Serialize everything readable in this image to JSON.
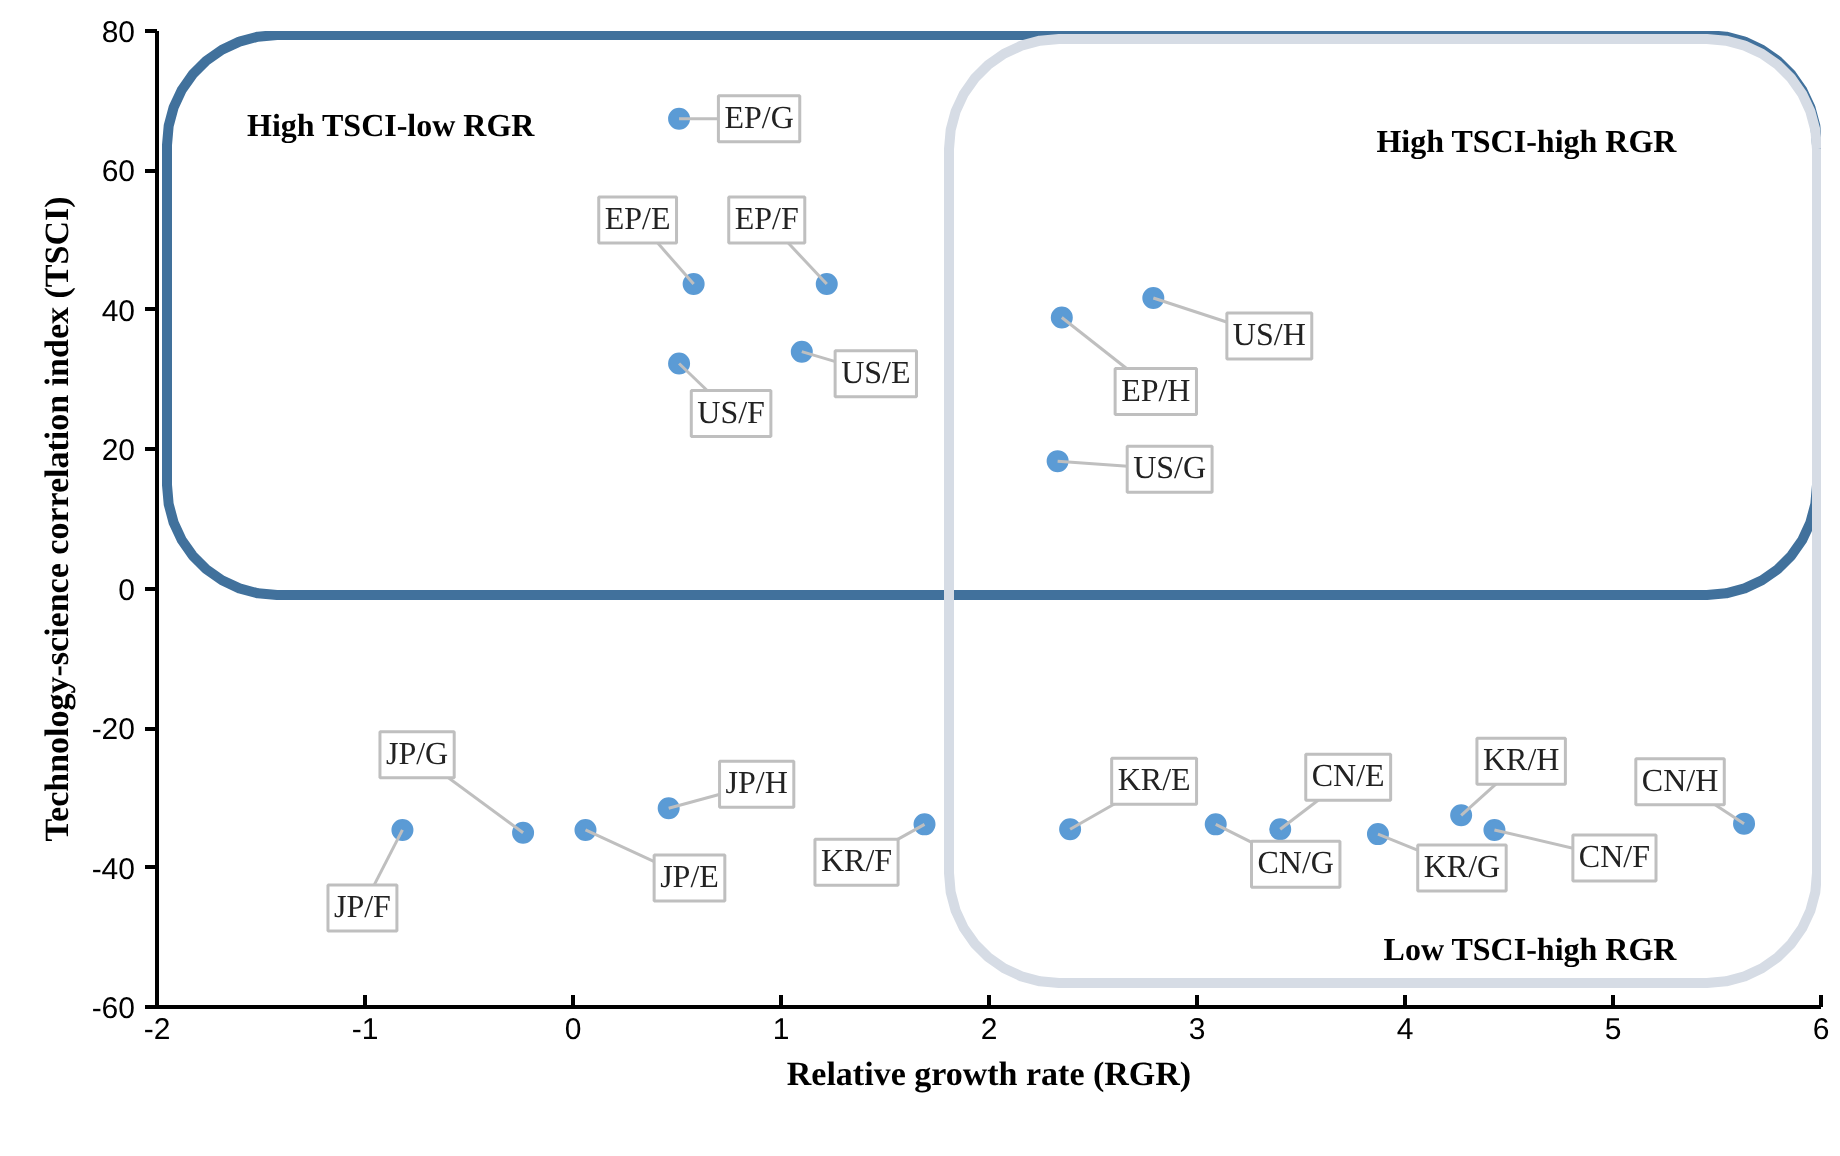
{
  "chart_data": {
    "type": "scatter",
    "xlabel": "Relative growth rate (RGR)",
    "ylabel": "Technology-science correlation index (TSCI)",
    "x": [
      0.51,
      0.58,
      1.22,
      0.51,
      1.1,
      2.35,
      2.79,
      2.33,
      -0.82,
      -0.24,
      0.06,
      0.46,
      1.69,
      2.39,
      3.09,
      3.4,
      3.87,
      4.27,
      4.43,
      5.63
    ],
    "series": [
      {
        "color": "#5b9bd5",
        "values": [
          67.4,
          43.7,
          43.7,
          32.3,
          34,
          38.9,
          41.7,
          18.3,
          -34.6,
          -35,
          -34.6,
          -31.5,
          -33.8,
          -34.5,
          -33.8,
          -34.5,
          -35.2,
          -32.5,
          -34.6,
          -33.7
        ]
      }
    ],
    "xlim": [
      -2,
      6
    ],
    "ylim": [
      -60,
      80
    ],
    "xticks": [
      -2,
      -1,
      0,
      1,
      2,
      3,
      4,
      5,
      6
    ],
    "yticks": [
      -60,
      -40,
      -20,
      0,
      20,
      40,
      60,
      80
    ],
    "grid": false,
    "marker": "circle",
    "annotations": [
      {
        "text": "EP/G",
        "x": 0.51,
        "y": 67.4
      },
      {
        "text": "EP/E",
        "x": 0.58,
        "y": 43.7
      },
      {
        "text": "EP/F",
        "x": 1.22,
        "y": 43.7
      },
      {
        "text": "US/F",
        "x": 0.51,
        "y": 32.3
      },
      {
        "text": "US/E",
        "x": 1.1,
        "y": 34
      },
      {
        "text": "EP/H",
        "x": 2.35,
        "y": 38.9
      },
      {
        "text": "US/H",
        "x": 2.79,
        "y": 41.7
      },
      {
        "text": "US/G",
        "x": 2.33,
        "y": 18.3
      },
      {
        "text": "JP/F",
        "x": -0.82,
        "y": -34.6
      },
      {
        "text": "JP/G",
        "x": -0.24,
        "y": -35
      },
      {
        "text": "JP/E",
        "x": 0.06,
        "y": -34.6
      },
      {
        "text": "JP/H",
        "x": 0.46,
        "y": -31.5
      },
      {
        "text": "KR/F",
        "x": 1.69,
        "y": -33.8
      },
      {
        "text": "KR/E",
        "x": 2.39,
        "y": -34.5
      },
      {
        "text": "CN/G",
        "x": 3.09,
        "y": -33.8
      },
      {
        "text": "CN/E",
        "x": 3.4,
        "y": -34.5
      },
      {
        "text": "KR/G",
        "x": 3.87,
        "y": -35.2
      },
      {
        "text": "KR/H",
        "x": 4.27,
        "y": -32.5
      },
      {
        "text": "CN/F",
        "x": 4.43,
        "y": -34.6
      },
      {
        "text": "CN/H",
        "x": 5.63,
        "y": -33.7
      },
      "High TSCI-low RGR",
      "High TSCI-high RGR",
      "Low TSCI-high RGR"
    ]
  }
}
